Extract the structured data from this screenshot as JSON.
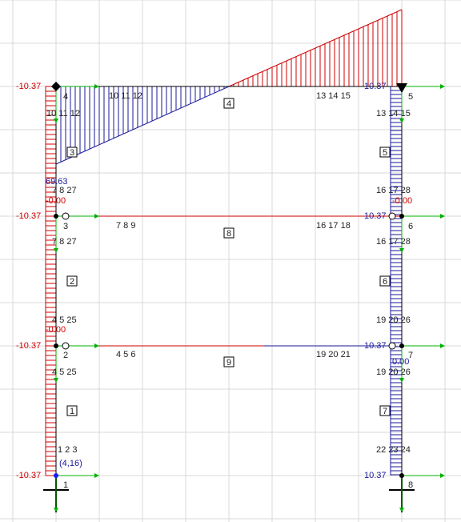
{
  "moments": {
    "left": [
      "-10.37",
      "-10.37",
      "-10.37",
      "-10.37"
    ],
    "right": [
      "10.37",
      "10.37",
      "10.37",
      "10.37"
    ]
  },
  "nodes": [
    "1",
    "2",
    "3",
    "4",
    "5",
    "6",
    "7",
    "8"
  ],
  "members": [
    "1",
    "2",
    "3",
    "4",
    "5",
    "6",
    "7",
    "8",
    "9"
  ],
  "labels": [
    "10 11 12",
    "10 11 12",
    "13 14 15",
    "13 14 15",
    "69.63",
    "7 8 27",
    "-0.00",
    "16 17 28",
    "-0.00",
    "7 8 9",
    "16 17 18",
    "7 8 27",
    "16 17 28",
    "4 5 25",
    "-0.00",
    "19 20 26",
    "4 5 6",
    "19 20 21",
    "4 5 25",
    "0.00",
    "19 20 26",
    "1 2 3",
    "(4,16)",
    "22 23 24"
  ]
}
